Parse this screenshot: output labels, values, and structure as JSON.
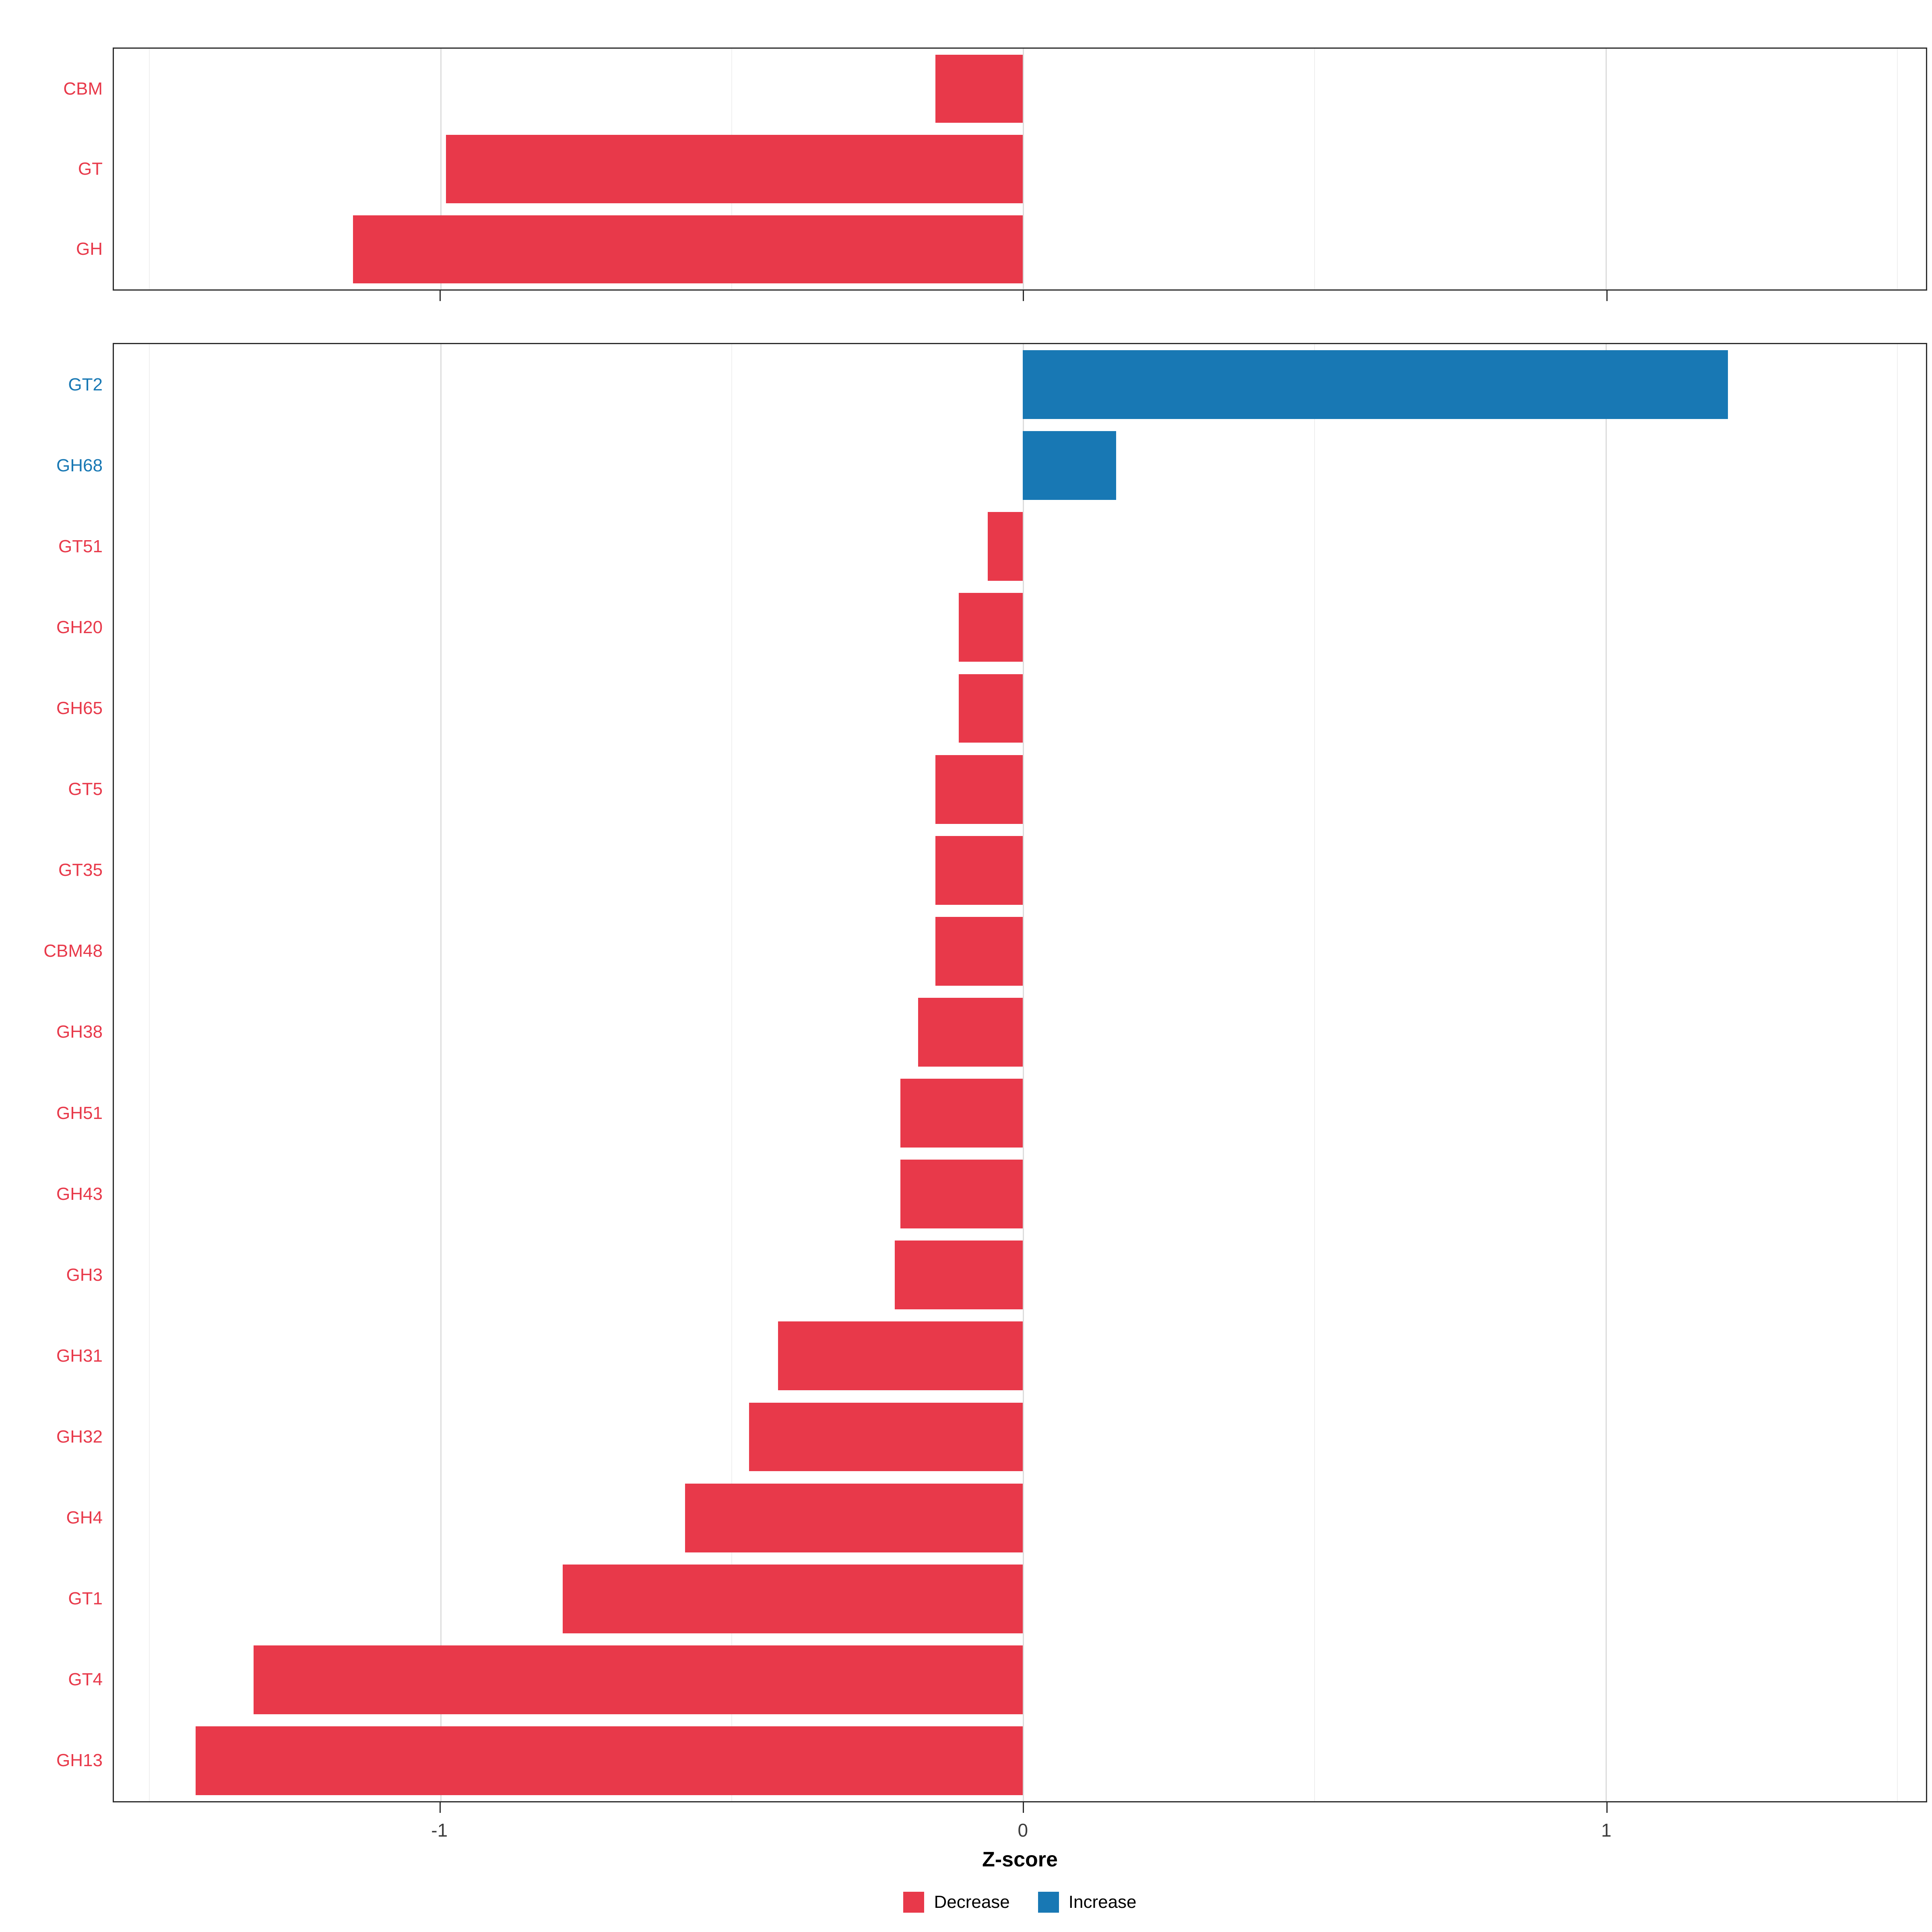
{
  "colors": {
    "decrease": "#E8394A",
    "increase": "#1878B4",
    "grid_major": "#dcdcdc",
    "grid_minor": "#efefef",
    "panel_border": "#2b2b2b"
  },
  "axis": {
    "label": "Z-score",
    "range": [
      -1.56,
      1.55
    ],
    "ticks": [
      {
        "value": -1,
        "label": "-1"
      },
      {
        "value": 0,
        "label": "0"
      },
      {
        "value": 1,
        "label": "1"
      }
    ],
    "minor_ticks": [
      -1.5,
      -0.5,
      0.5,
      1.5
    ]
  },
  "legend": [
    {
      "label": "Decrease",
      "color_key": "decrease"
    },
    {
      "label": "Increase",
      "color_key": "increase"
    }
  ],
  "chart_data": [
    {
      "type": "bar",
      "orientation": "horizontal",
      "panel": "top",
      "categories": [
        "CBM",
        "GT",
        "GH"
      ],
      "values": [
        -0.15,
        -0.99,
        -1.15
      ],
      "xlim": [
        -1.56,
        1.55
      ],
      "grid": true,
      "legend_position": "none"
    },
    {
      "type": "bar",
      "orientation": "horizontal",
      "panel": "bottom",
      "categories": [
        "GT2",
        "GH68",
        "GT51",
        "GH20",
        "GH65",
        "GT5",
        "GT35",
        "CBM48",
        "GH38",
        "GH51",
        "GH43",
        "GH3",
        "GH31",
        "GH32",
        "GH4",
        "GT1",
        "GT4",
        "GH13"
      ],
      "values": [
        1.21,
        0.16,
        -0.06,
        -0.11,
        -0.11,
        -0.15,
        -0.15,
        -0.15,
        -0.18,
        -0.21,
        -0.21,
        -0.22,
        -0.42,
        -0.47,
        -0.58,
        -0.79,
        -1.32,
        -1.42
      ],
      "xlabel": "Z-score",
      "xlim": [
        -1.56,
        1.55
      ],
      "grid": true,
      "legend_position": "bottom"
    }
  ]
}
